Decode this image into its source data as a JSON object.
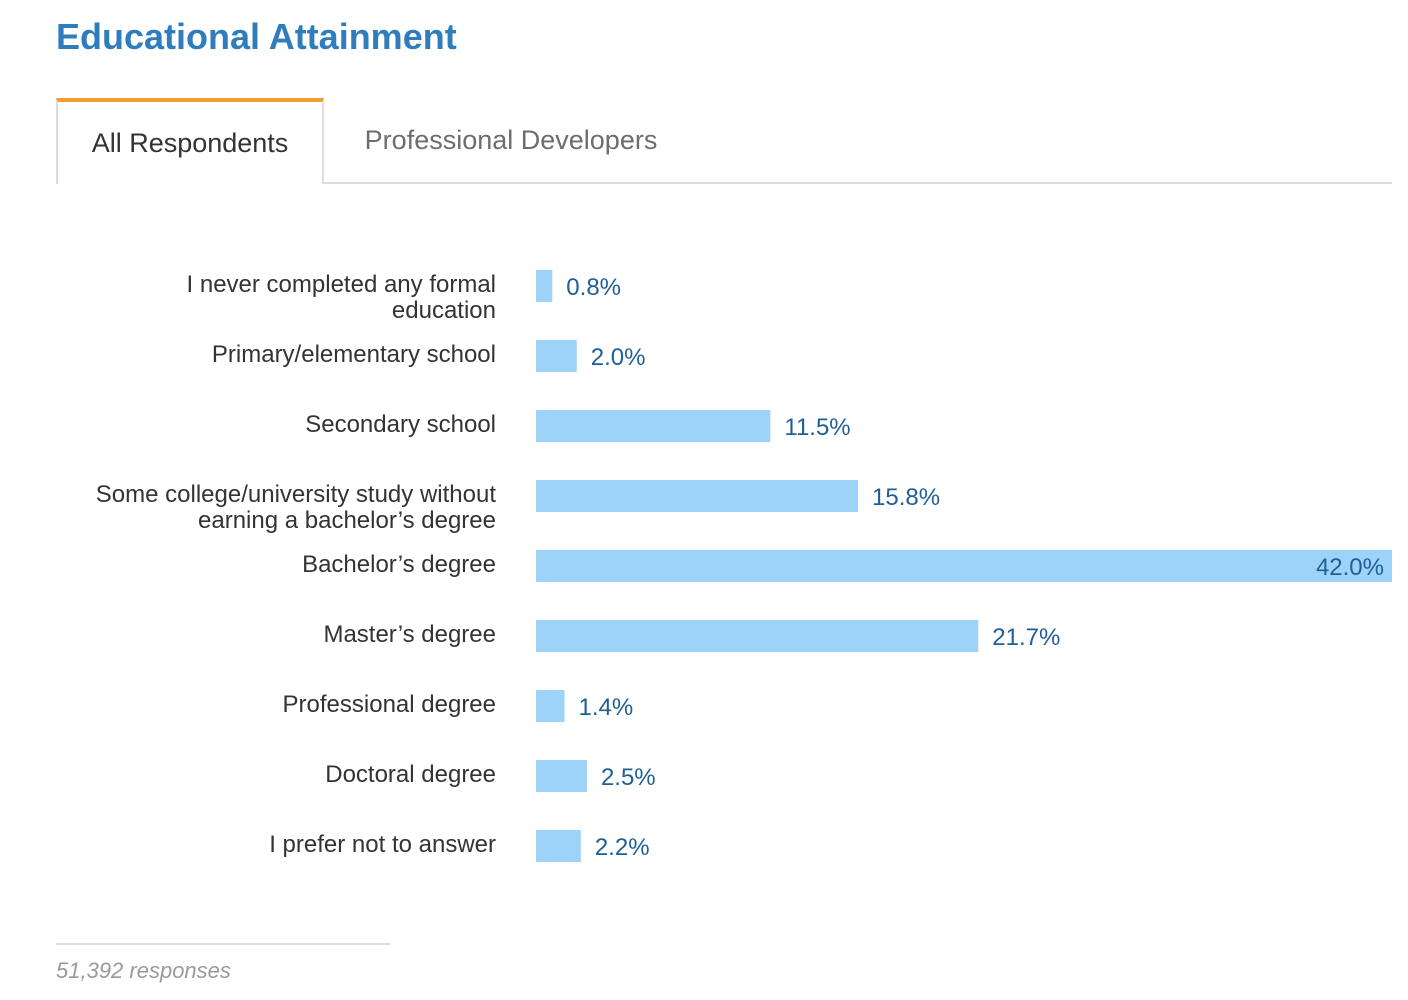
{
  "header": {
    "title": "Educational Attainment"
  },
  "tabs": [
    {
      "label": "All Respondents",
      "active": true
    },
    {
      "label": "Professional Developers",
      "active": false
    }
  ],
  "colors": {
    "title": "#2f7dbd",
    "bar": "#9dd3f8",
    "value_label": "#1f5f99",
    "tab_accent": "#f2a02a"
  },
  "chart_data": {
    "type": "bar",
    "orientation": "horizontal",
    "categories": [
      [
        "I never completed any formal",
        "education"
      ],
      [
        "Primary/elementary school"
      ],
      [
        "Secondary school"
      ],
      [
        "Some college/university study without",
        "earning a bachelor’s degree"
      ],
      [
        "Bachelor’s degree"
      ],
      [
        "Master’s degree"
      ],
      [
        "Professional degree"
      ],
      [
        "Doctoral degree"
      ],
      [
        "I prefer not to answer"
      ]
    ],
    "values": [
      0.8,
      2.0,
      11.5,
      15.8,
      42.0,
      21.7,
      1.4,
      2.5,
      2.2
    ],
    "value_labels": [
      "0.8%",
      "2.0%",
      "11.5%",
      "15.8%",
      "42.0%",
      "21.7%",
      "1.4%",
      "2.5%",
      "2.2%"
    ],
    "xlim": [
      0,
      42.0
    ],
    "grid": false
  },
  "footer": {
    "responses": "51,392 responses"
  }
}
